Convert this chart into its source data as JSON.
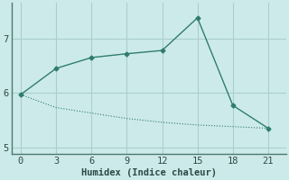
{
  "xlabel": "Humidex (Indice chaleur)",
  "x": [
    0,
    3,
    6,
    9,
    12,
    15,
    18,
    21
  ],
  "line1_y": [
    5.97,
    6.45,
    6.65,
    6.72,
    6.78,
    7.38,
    5.77,
    5.35
  ],
  "line2_y": [
    5.97,
    5.73,
    5.63,
    5.53,
    5.46,
    5.41,
    5.38,
    5.35
  ],
  "color": "#2e7d6e",
  "bg_color": "#cdeaea",
  "grid_color": "#aacfcc",
  "axis_color": "#4a7a70",
  "tick_color": "#2a4a45",
  "xlim": [
    -0.8,
    22.5
  ],
  "ylim": [
    4.88,
    7.65
  ],
  "yticks": [
    5,
    6,
    7
  ],
  "xticks": [
    0,
    3,
    6,
    9,
    12,
    15,
    18,
    21
  ]
}
